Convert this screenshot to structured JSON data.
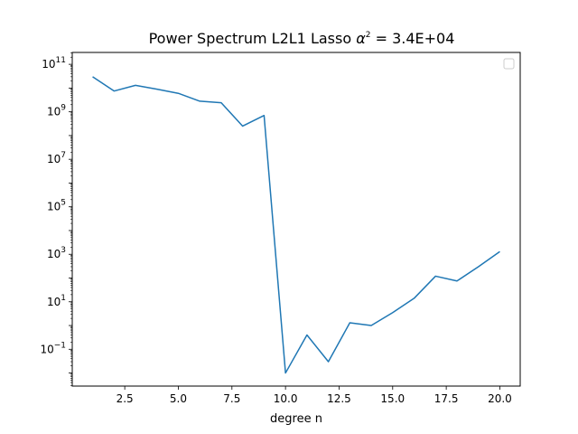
{
  "chart_data": {
    "type": "line",
    "title": {
      "prefix": "Power Spectrum L2L1 Lasso ",
      "symbol": "α",
      "symbol_sup": "2",
      "suffix": " = 3.4E+04"
    },
    "xlabel": "degree n",
    "ylabel": "",
    "y_scale": "log",
    "xlim": [
      0.05,
      20.95
    ],
    "ylim_log10": [
      -2.55,
      11.5
    ],
    "x_ticks": [
      {
        "value": 2.5,
        "label": "2.5"
      },
      {
        "value": 5.0,
        "label": "5.0"
      },
      {
        "value": 7.5,
        "label": "7.5"
      },
      {
        "value": 10.0,
        "label": "10.0"
      },
      {
        "value": 12.5,
        "label": "12.5"
      },
      {
        "value": 15.0,
        "label": "15.0"
      },
      {
        "value": 17.5,
        "label": "17.5"
      },
      {
        "value": 20.0,
        "label": "20.0"
      }
    ],
    "y_ticks": [
      {
        "exp": 11,
        "base": "10",
        "sup": "11"
      },
      {
        "exp": 9,
        "base": "10",
        "sup": "9"
      },
      {
        "exp": 7,
        "base": "10",
        "sup": "7"
      },
      {
        "exp": 5,
        "base": "10",
        "sup": "5"
      },
      {
        "exp": 3,
        "base": "10",
        "sup": "3"
      },
      {
        "exp": 1,
        "base": "10",
        "sup": "1"
      },
      {
        "exp": -1,
        "base": "10",
        "sup": "−1"
      }
    ],
    "grid": false,
    "legend": {
      "position": "top-right",
      "entries": []
    },
    "series": [
      {
        "color": "#1f77b4",
        "x": [
          1,
          2,
          3,
          4,
          5,
          6,
          7,
          8,
          9,
          10,
          11,
          12,
          13,
          14,
          15,
          16,
          17,
          18,
          19,
          20
        ],
        "y": [
          30000000000.0,
          7500000000.0,
          13000000000.0,
          9000000000.0,
          6000000000.0,
          2800000000.0,
          2400000000.0,
          250000000.0,
          700000000.0,
          0.01,
          0.4,
          0.03,
          1.3,
          1.0,
          3.5,
          14.0,
          120.0,
          75.0,
          300.0,
          1300.0
        ]
      }
    ]
  }
}
